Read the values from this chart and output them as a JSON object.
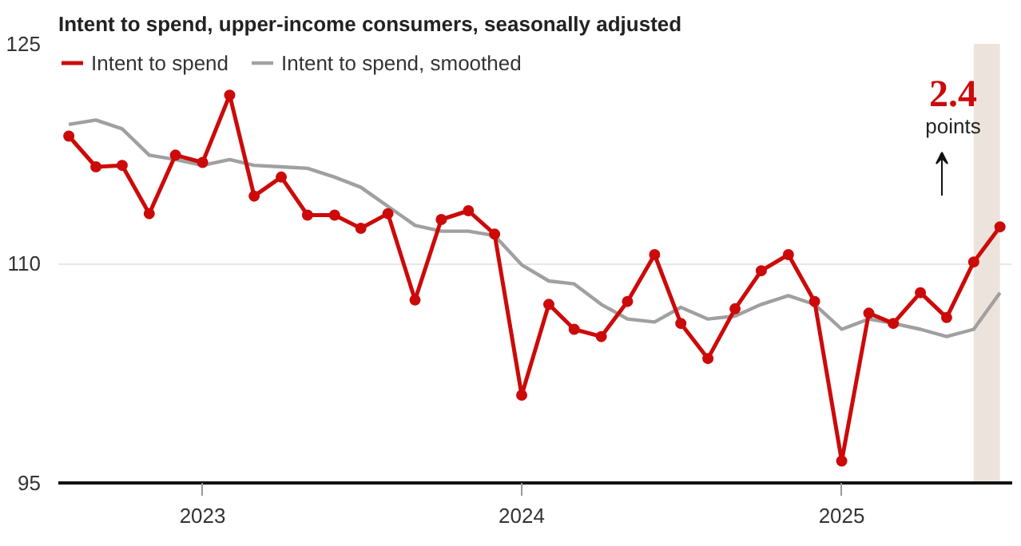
{
  "chart_data": {
    "type": "line",
    "title": "Intent to spend, upper-income consumers, seasonally adjusted",
    "x": [
      "2022-08",
      "2022-09",
      "2022-10",
      "2022-11",
      "2022-12",
      "2023-01",
      "2023-02",
      "2023-03",
      "2023-04",
      "2023-05",
      "2023-06",
      "2023-07",
      "2023-08",
      "2023-09",
      "2023-10",
      "2023-11",
      "2023-12",
      "2024-01",
      "2024-02",
      "2024-03",
      "2024-04",
      "2024-05",
      "2024-06",
      "2024-07",
      "2024-08",
      "2024-09",
      "2024-10",
      "2024-11",
      "2024-12",
      "2025-01",
      "2025-02",
      "2025-03",
      "2025-04",
      "2025-05",
      "2025-06",
      "2025-07"
    ],
    "series": [
      {
        "name": "Intent to spend",
        "color": "#cc0a0a",
        "marker": "circle",
        "values": [
          118.7,
          116.6,
          116.7,
          113.4,
          117.4,
          116.9,
          121.5,
          114.6,
          115.9,
          113.3,
          113.3,
          112.4,
          113.4,
          107.5,
          113.0,
          113.6,
          112.0,
          101.0,
          107.2,
          105.5,
          105.0,
          107.4,
          110.6,
          105.9,
          103.5,
          106.9,
          109.5,
          110.6,
          107.4,
          96.5,
          106.6,
          105.9,
          108.0,
          106.3,
          110.1,
          112.5
        ]
      },
      {
        "name": "Intent to spend, smoothed",
        "color": "#a0a0a0",
        "marker": "none",
        "values": [
          119.5,
          119.8,
          119.2,
          117.4,
          117.1,
          116.7,
          117.1,
          116.7,
          116.6,
          116.5,
          115.9,
          115.2,
          113.9,
          112.6,
          112.2,
          112.2,
          111.9,
          109.9,
          108.8,
          108.6,
          107.2,
          106.2,
          106.0,
          107.0,
          106.2,
          106.4,
          107.2,
          107.8,
          107.2,
          105.5,
          106.2,
          105.9,
          105.5,
          105.0,
          105.5,
          108.0
        ]
      }
    ],
    "xlim": [
      "2022-07-20",
      "2025-07-15"
    ],
    "xticks": [
      {
        "value": "2023-01",
        "label": "2023"
      },
      {
        "value": "2024-01",
        "label": "2024"
      },
      {
        "value": "2025-01",
        "label": "2025"
      }
    ],
    "ylim": [
      95,
      125
    ],
    "yticks": [
      95,
      110,
      125
    ],
    "grid": "y",
    "legend": "top left",
    "line_style": "solid",
    "bands": [
      {
        "axis": "x",
        "from": "2025-06",
        "to": "2025-07",
        "color": "#ece4dc"
      }
    ],
    "annotations": [
      "2.4",
      "points"
    ]
  }
}
